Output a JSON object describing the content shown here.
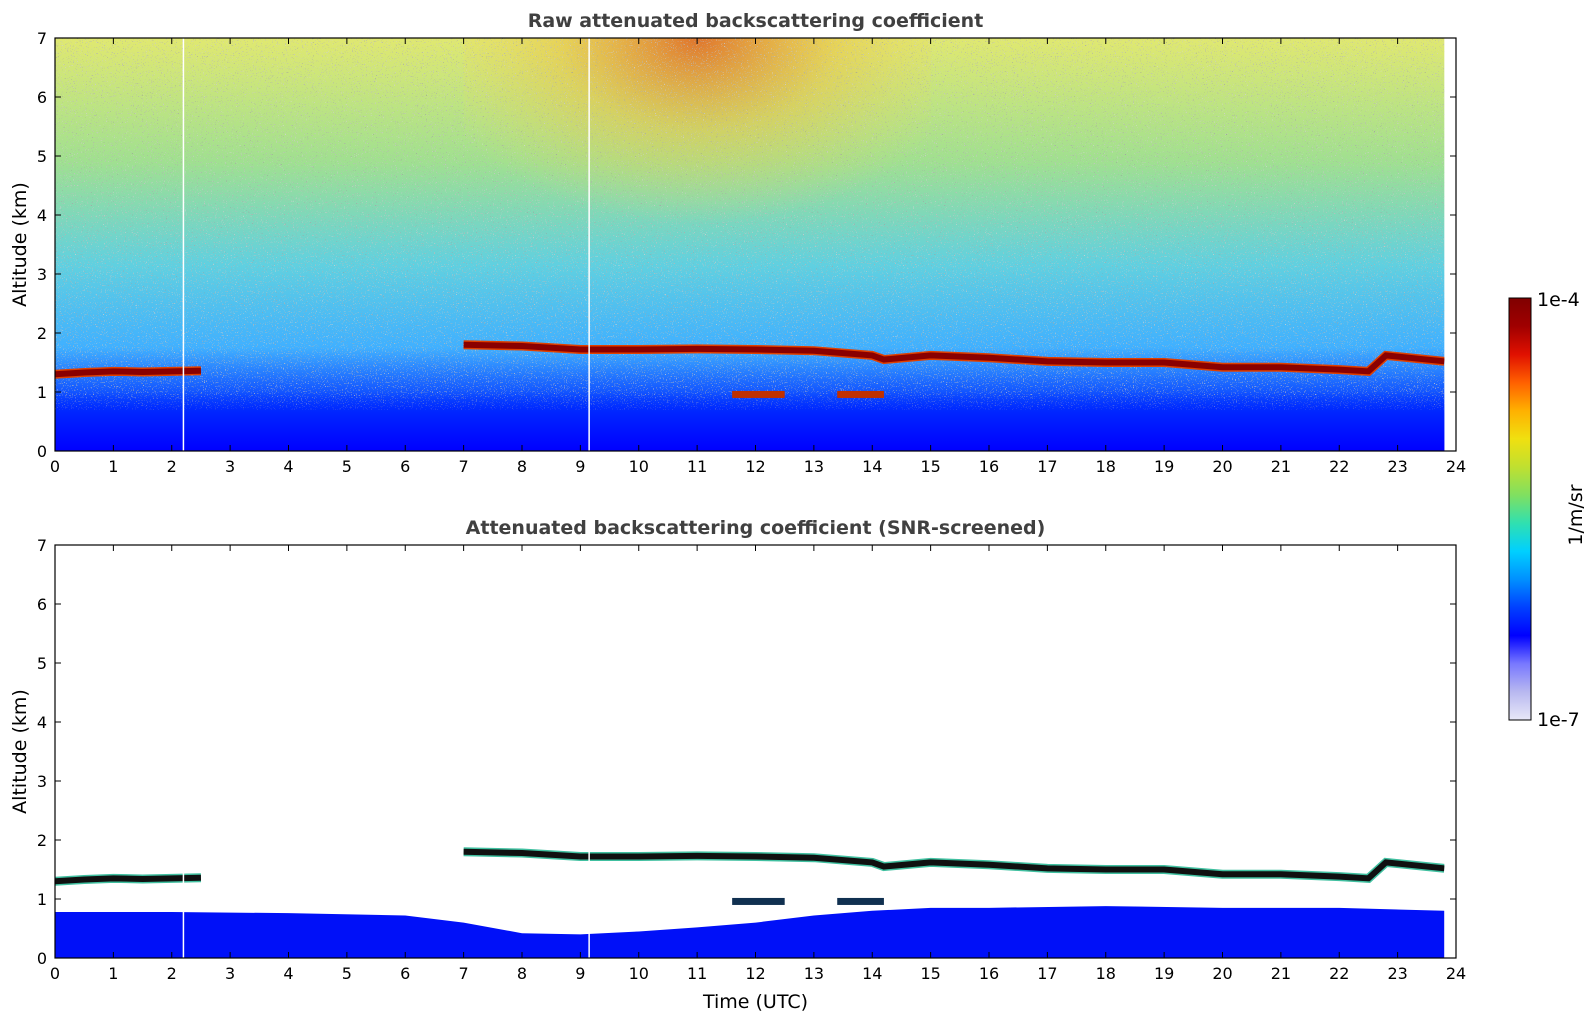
{
  "colorbar": {
    "label": "1/m/sr",
    "max_label": "1e-4",
    "min_label": "1e-7",
    "scale": "log",
    "range": [
      1e-07,
      0.0001
    ],
    "colors": [
      "#e8e8f8",
      "#b8b8f0",
      "#7878ff",
      "#0000ff",
      "#0040ff",
      "#0090ff",
      "#00d0ff",
      "#30e0b0",
      "#80e060",
      "#c0e030",
      "#f0e010",
      "#ffb000",
      "#ff6000",
      "#e01000",
      "#a00000",
      "#800000"
    ]
  },
  "chart_data": [
    {
      "type": "heatmap",
      "title": "Raw attenuated backscattering coefficient",
      "xlabel": "",
      "ylabel": "Altitude (km)",
      "xlim": [
        0,
        24
      ],
      "ylim": [
        0,
        7
      ],
      "xticks": [
        "0",
        "1",
        "2",
        "3",
        "4",
        "5",
        "6",
        "7",
        "8",
        "9",
        "10",
        "11",
        "12",
        "13",
        "14",
        "15",
        "16",
        "17",
        "18",
        "19",
        "20",
        "21",
        "22",
        "23",
        "24"
      ],
      "yticks": [
        "0",
        "1",
        "2",
        "3",
        "4",
        "5",
        "6",
        "7"
      ],
      "data_end_hour": 23.8,
      "cloud_layer": {
        "x": [
          0,
          0.5,
          1,
          1.5,
          2,
          2.5,
          7,
          8,
          9,
          10,
          11,
          12,
          13,
          14,
          14.2,
          15,
          16,
          17,
          18,
          19,
          20,
          21,
          22,
          22.5,
          22.8,
          23.5,
          23.8
        ],
        "y": [
          1.3,
          1.33,
          1.35,
          1.34,
          1.35,
          1.36,
          1.8,
          1.78,
          1.72,
          1.72,
          1.73,
          1.72,
          1.7,
          1.62,
          1.55,
          1.62,
          1.58,
          1.52,
          1.5,
          1.5,
          1.42,
          1.42,
          1.38,
          1.35,
          1.62,
          1.55,
          1.52
        ],
        "gaps": [
          [
            2.5,
            7
          ]
        ]
      }
    },
    {
      "type": "heatmap",
      "title": "Attenuated backscattering coefficient (SNR-screened)",
      "xlabel": "Time (UTC)",
      "ylabel": "Altitude (km)",
      "xlim": [
        0,
        24
      ],
      "ylim": [
        0,
        7
      ],
      "xticks": [
        "0",
        "1",
        "2",
        "3",
        "4",
        "5",
        "6",
        "7",
        "8",
        "9",
        "10",
        "11",
        "12",
        "13",
        "14",
        "15",
        "16",
        "17",
        "18",
        "19",
        "20",
        "21",
        "22",
        "23",
        "24"
      ],
      "yticks": [
        "0",
        "1",
        "2",
        "3",
        "4",
        "5",
        "6",
        "7"
      ],
      "data_end_hour": 23.8,
      "boundary_layer_top": {
        "x": [
          0,
          2,
          4,
          6,
          7,
          8,
          9,
          10,
          11,
          12,
          13,
          14,
          15,
          16,
          18,
          20,
          22,
          23.8
        ],
        "y": [
          0.78,
          0.78,
          0.76,
          0.72,
          0.6,
          0.42,
          0.4,
          0.45,
          0.52,
          0.6,
          0.72,
          0.8,
          0.85,
          0.85,
          0.88,
          0.85,
          0.85,
          0.8
        ]
      }
    }
  ]
}
